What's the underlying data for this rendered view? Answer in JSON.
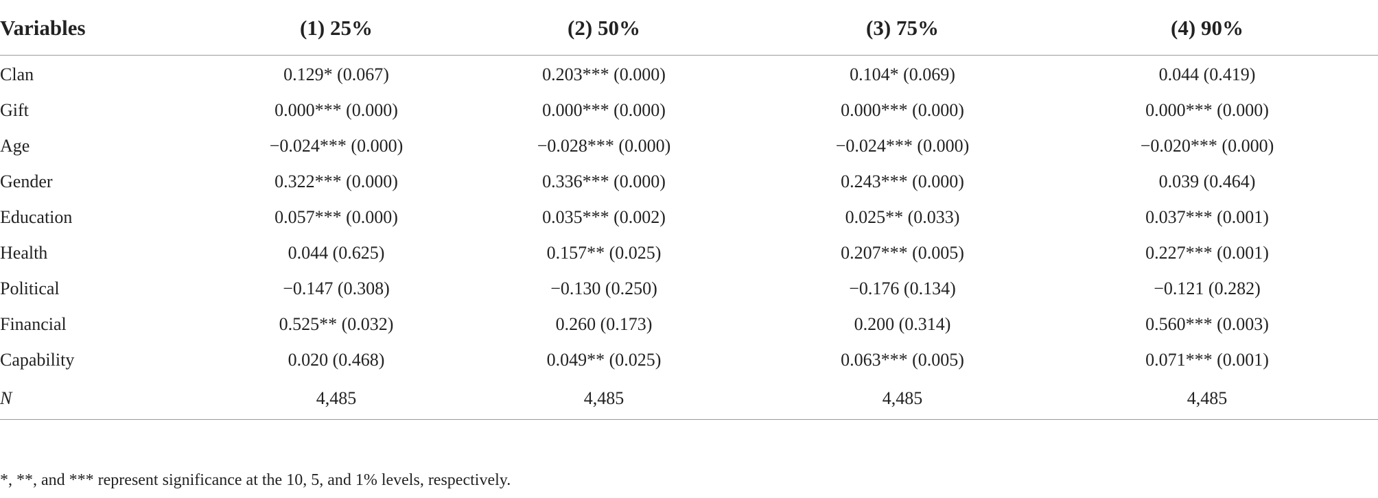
{
  "table": {
    "headers": [
      "Variables",
      "(1) 25%",
      "(2) 50%",
      "(3) 75%",
      "(4) 90%"
    ],
    "rows": [
      {
        "variable": "Clan",
        "values": [
          "0.129* (0.067)",
          "0.203*** (0.000)",
          "0.104* (0.069)",
          "0.044 (0.419)"
        ]
      },
      {
        "variable": "Gift",
        "values": [
          "0.000*** (0.000)",
          "0.000*** (0.000)",
          "0.000*** (0.000)",
          "0.000*** (0.000)"
        ]
      },
      {
        "variable": "Age",
        "values": [
          "−0.024*** (0.000)",
          "−0.028*** (0.000)",
          "−0.024*** (0.000)",
          "−0.020*** (0.000)"
        ]
      },
      {
        "variable": "Gender",
        "values": [
          "0.322*** (0.000)",
          "0.336*** (0.000)",
          "0.243*** (0.000)",
          "0.039 (0.464)"
        ]
      },
      {
        "variable": "Education",
        "values": [
          "0.057*** (0.000)",
          "0.035*** (0.002)",
          "0.025** (0.033)",
          "0.037*** (0.001)"
        ]
      },
      {
        "variable": "Health",
        "values": [
          "0.044 (0.625)",
          "0.157** (0.025)",
          "0.207*** (0.005)",
          "0.227*** (0.001)"
        ]
      },
      {
        "variable": "Political",
        "values": [
          "−0.147 (0.308)",
          "−0.130 (0.250)",
          "−0.176 (0.134)",
          "−0.121 (0.282)"
        ]
      },
      {
        "variable": "Financial",
        "values": [
          "0.525** (0.032)",
          "0.260 (0.173)",
          "0.200 (0.314)",
          "0.560*** (0.003)"
        ]
      },
      {
        "variable": "Capability",
        "values": [
          "0.020 (0.468)",
          "0.049** (0.025)",
          "0.063*** (0.005)",
          "0.071*** (0.001)"
        ]
      },
      {
        "variable": "N",
        "values": [
          "4,485",
          "4,485",
          "4,485",
          "4,485"
        ]
      }
    ]
  },
  "footnote": "*, **, and *** represent significance at the 10, 5, and 1% levels, respectively."
}
